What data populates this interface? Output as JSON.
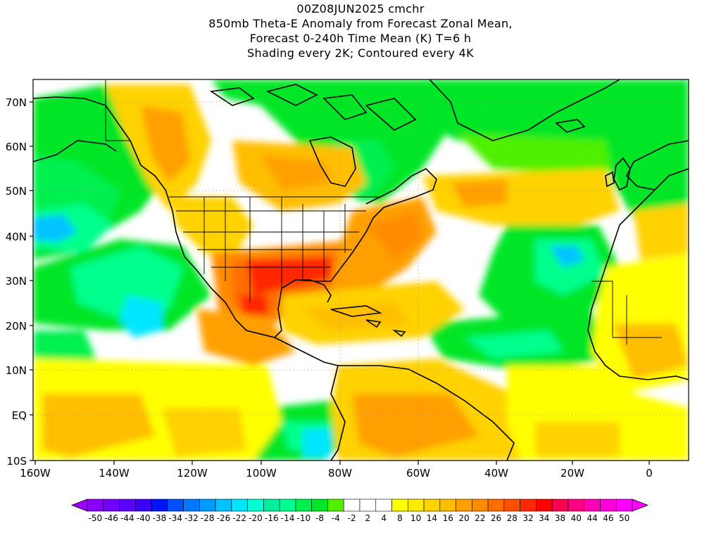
{
  "title": {
    "line1": "00Z08JUN2025 cmchr",
    "line2": "850mb Theta-E Anomaly from Forecast Zonal Mean,",
    "line3": "Forecast 0-240h Time Mean (K) T=6 h",
    "line4": "Shading every 2K; Contoured every 4K"
  },
  "lat_labels": [
    "70N",
    "60N",
    "50N",
    "40N",
    "30N",
    "20N",
    "10N",
    "EQ",
    "10S"
  ],
  "lon_labels": [
    "160W",
    "140W",
    "120W",
    "100W",
    "80W",
    "60W",
    "40W",
    "20W",
    "0"
  ],
  "colorbar": {
    "labels": [
      "-50",
      "-46",
      "-44",
      "-40",
      "-38",
      "-34",
      "-32",
      "-28",
      "-26",
      "-22",
      "-20",
      "-16",
      "-14",
      "-10",
      "-8",
      "-4",
      "-2",
      "2",
      "4",
      "8",
      "10",
      "14",
      "16",
      "20",
      "22",
      "26",
      "28",
      "32",
      "34",
      "38",
      "40",
      "44",
      "46",
      "50"
    ],
    "colors": [
      "#8a00ff",
      "#7300ff",
      "#5a00ff",
      "#3c00ff",
      "#0014ff",
      "#0050ff",
      "#0078ff",
      "#009bff",
      "#00c3ff",
      "#00e6ff",
      "#00ffd2",
      "#00f0a0",
      "#00ff8c",
      "#00f050",
      "#00e628",
      "#50f000",
      "#ffffff",
      "#ffffff",
      "#ffffff",
      "#ffff00",
      "#ffeb00",
      "#ffd200",
      "#ffbe00",
      "#ffa000",
      "#ff8c00",
      "#ff6e00",
      "#ff5000",
      "#ff2800",
      "#ff0000",
      "#ff0050",
      "#ff0082",
      "#ff00b4",
      "#ff00dc",
      "#ff00ff"
    ],
    "underflow_color": "#9b00ff",
    "overflow_color": "#ff00ff"
  }
}
